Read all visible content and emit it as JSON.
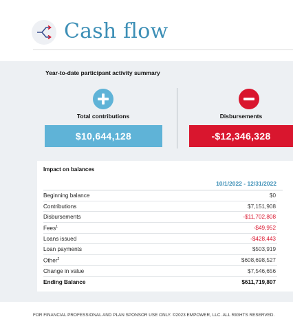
{
  "header": {
    "title": "Cash flow",
    "icon": "shuffle-arrows-icon"
  },
  "summary": {
    "title": "Year-to-date participant activity summary",
    "contributions": {
      "icon": "plus-circle-icon",
      "label": "Total contributions",
      "value": "$10,644,128",
      "color": "#5fb3d7"
    },
    "disbursements": {
      "icon": "minus-circle-icon",
      "label": "Disbursements",
      "value": "-$12,346,328",
      "color": "#d9162e"
    }
  },
  "impact": {
    "title": "Impact on balances",
    "period": "10/1/2022 - 12/31/2022",
    "rows": [
      {
        "label": "Beginning balance",
        "sup": "",
        "value": "$0",
        "negative": false,
        "bold": false
      },
      {
        "label": "Contributions",
        "sup": "",
        "value": "$7,151,908",
        "negative": false,
        "bold": false
      },
      {
        "label": "Disbursements",
        "sup": "",
        "value": "-$11,702,808",
        "negative": true,
        "bold": false
      },
      {
        "label": "Fees",
        "sup": "1",
        "value": "-$49,952",
        "negative": true,
        "bold": false
      },
      {
        "label": "Loans issued",
        "sup": "",
        "value": "-$428,443",
        "negative": true,
        "bold": false
      },
      {
        "label": "Loan payments",
        "sup": "",
        "value": "$503,919",
        "negative": false,
        "bold": false
      },
      {
        "label": "Other",
        "sup": "2",
        "value": "$608,698,527",
        "negative": false,
        "bold": false
      },
      {
        "label": "Change in value",
        "sup": "",
        "value": "$7,546,656",
        "negative": false,
        "bold": false
      },
      {
        "label": "Ending Balance",
        "sup": "",
        "value": "$611,719,807",
        "negative": false,
        "bold": true
      }
    ]
  },
  "footer": {
    "text": "FOR FINANCIAL PROFESSIONAL AND PLAN SPONSOR USE ONLY. ©2023 EMPOWER, LLC. ALL RIGHTS RESERVED."
  },
  "colors": {
    "accent": "#3d8fb6",
    "positive": "#5fb3d7",
    "negative": "#d9162e",
    "panel": "#edf0f3"
  }
}
